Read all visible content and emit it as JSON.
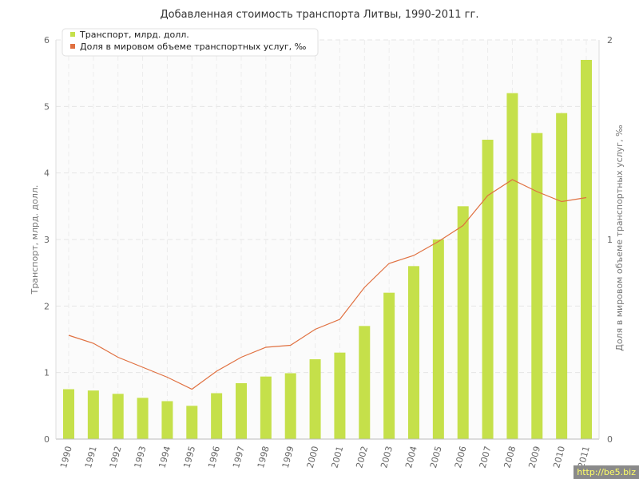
{
  "chart_data": {
    "type": "bar",
    "title": "Добавленная стоимость транспорта Литвы, 1990-2011 гг.",
    "categories": [
      "1990",
      "1991",
      "1992",
      "1993",
      "1994",
      "1995",
      "1996",
      "1997",
      "1998",
      "1999",
      "2000",
      "2001",
      "2002",
      "2003",
      "2004",
      "2005",
      "2006",
      "2007",
      "2008",
      "2009",
      "2010",
      "2011"
    ],
    "series": [
      {
        "name": "Транспорт, млрд. долл.",
        "type": "bar",
        "axis": "left",
        "color": "#c5e04a",
        "values": [
          0.75,
          0.73,
          0.68,
          0.62,
          0.57,
          0.5,
          0.69,
          0.84,
          0.94,
          0.99,
          1.2,
          1.3,
          1.7,
          2.2,
          2.6,
          3.0,
          3.5,
          4.5,
          5.2,
          4.6,
          4.9,
          5.7
        ]
      },
      {
        "name": "Доля в мировом объеме транспортных услуг, ‰",
        "type": "line",
        "axis": "right",
        "color": "#e07040",
        "values": [
          0.52,
          0.48,
          0.41,
          0.36,
          0.31,
          0.25,
          0.34,
          0.41,
          0.46,
          0.47,
          0.55,
          0.6,
          0.76,
          0.88,
          0.92,
          0.99,
          1.07,
          1.22,
          1.3,
          1.24,
          1.19,
          1.21
        ]
      }
    ],
    "ylabel": "Транспорт, млрд. долл.",
    "y2label": "Доля в мировом объеме транспортных услуг, ‰",
    "ylim": [
      0,
      6
    ],
    "y2lim": [
      0,
      2
    ],
    "yticks": [
      0,
      1,
      2,
      3,
      4,
      5,
      6
    ],
    "y2ticks": [
      0,
      1,
      2
    ],
    "grid": true,
    "legend_position": "top-left"
  },
  "watermark": "http://be5.biz"
}
